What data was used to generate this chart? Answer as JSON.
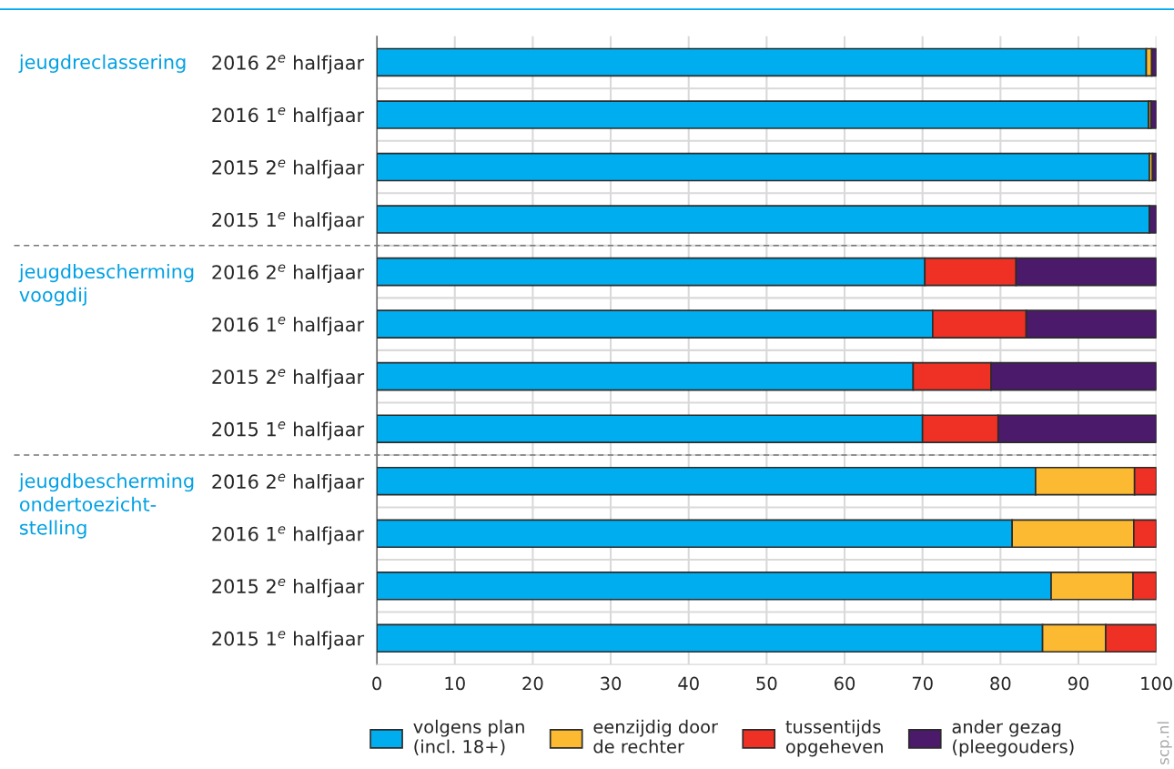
{
  "chart_data": {
    "type": "bar",
    "orientation": "horizontal",
    "stacked": true,
    "categories": [
      "2016 2$^{e}$ halfjaar",
      "2016 1$^{e}$ halfjaar",
      "2015 2$^{e}$ halfjaar",
      "2015 1$^{e}$ halfjaar",
      "2016 2$^{e}$ halfjaar",
      "2016 1$^{e}$ halfjaar",
      "2015 2$^{e}$ halfjaar",
      "2015 1$^{e}$ halfjaar",
      "2016 2$^{e}$ halfjaar",
      "2016 1$^{e}$ halfjaar",
      "2015 2$^{e}$ halfjaar",
      "2015 1$^{e}$ halfjaar"
    ],
    "series": [
      {
        "name": "volgens plan\n(incl. 18+)",
        "color": "#00aeef",
        "values": [
          98.7,
          99.0,
          99.1,
          99.1,
          70.3,
          71.3,
          68.8,
          70.0,
          84.5,
          81.5,
          86.5,
          85.4
        ]
      },
      {
        "name": "eenzijdig door\nde rechter",
        "color": "#fbba31",
        "values": [
          0.7,
          0.3,
          0.4,
          null,
          null,
          null,
          null,
          null,
          12.7,
          15.6,
          10.5,
          8.1
        ]
      },
      {
        "name": "tussentijds\nopgeheven",
        "color": "#ee3124",
        "values": [
          null,
          null,
          null,
          null,
          11.7,
          12.0,
          10.0,
          9.7,
          2.8,
          2.9,
          3.0,
          6.5
        ]
      },
      {
        "name": "ander gezag\n(pleegouders)",
        "color": "#4b1a6b",
        "values": [
          0.6,
          0.7,
          0.5,
          0.9,
          18.0,
          16.7,
          21.2,
          20.3,
          null,
          null,
          null,
          null
        ]
      }
    ],
    "xlim": [
      0,
      100
    ],
    "xticks": [
      0,
      10,
      20,
      30,
      40,
      50,
      60,
      70,
      80,
      90,
      100
    ],
    "grid": true,
    "legend": "bottom",
    "annotations": [
      "jeugdreclassering",
      "jeugdbescherming\nvoogdij",
      "jeugdbescherming\nondertoezicht-\nstelling",
      "scp.nl"
    ]
  }
}
